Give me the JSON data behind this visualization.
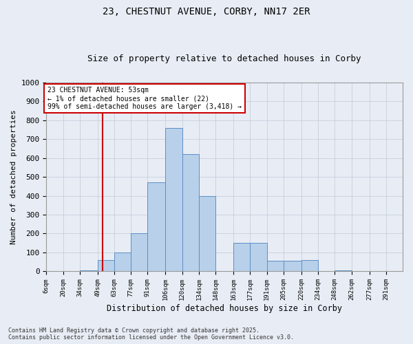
{
  "title1": "23, CHESTNUT AVENUE, CORBY, NN17 2ER",
  "title2": "Size of property relative to detached houses in Corby",
  "xlabel": "Distribution of detached houses by size in Corby",
  "ylabel": "Number of detached properties",
  "bin_labels": [
    "6sqm",
    "20sqm",
    "34sqm",
    "49sqm",
    "63sqm",
    "77sqm",
    "91sqm",
    "106sqm",
    "120sqm",
    "134sqm",
    "148sqm",
    "163sqm",
    "177sqm",
    "191sqm",
    "205sqm",
    "220sqm",
    "234sqm",
    "248sqm",
    "262sqm",
    "277sqm",
    "291sqm"
  ],
  "bin_edges": [
    6,
    20,
    34,
    49,
    63,
    77,
    91,
    106,
    120,
    134,
    148,
    163,
    177,
    191,
    205,
    220,
    234,
    248,
    262,
    277,
    291,
    305
  ],
  "bar_heights": [
    0,
    0,
    5,
    60,
    100,
    200,
    470,
    760,
    620,
    400,
    0,
    150,
    150,
    55,
    55,
    60,
    0,
    5,
    0,
    0,
    0
  ],
  "bar_color": "#b8d0ea",
  "bar_edge_color": "#5b8ec4",
  "vline_x": 53,
  "vline_color": "#cc0000",
  "annotation_text": "23 CHESTNUT AVENUE: 53sqm\n← 1% of detached houses are smaller (22)\n99% of semi-detached houses are larger (3,418) →",
  "annotation_box_color": "#ffffff",
  "annotation_box_edge": "#cc0000",
  "ylim": [
    0,
    1000
  ],
  "yticks": [
    0,
    100,
    200,
    300,
    400,
    500,
    600,
    700,
    800,
    900,
    1000
  ],
  "grid_color": "#c0c8d8",
  "bg_color": "#e8edf5",
  "footer": "Contains HM Land Registry data © Crown copyright and database right 2025.\nContains public sector information licensed under the Open Government Licence v3.0."
}
